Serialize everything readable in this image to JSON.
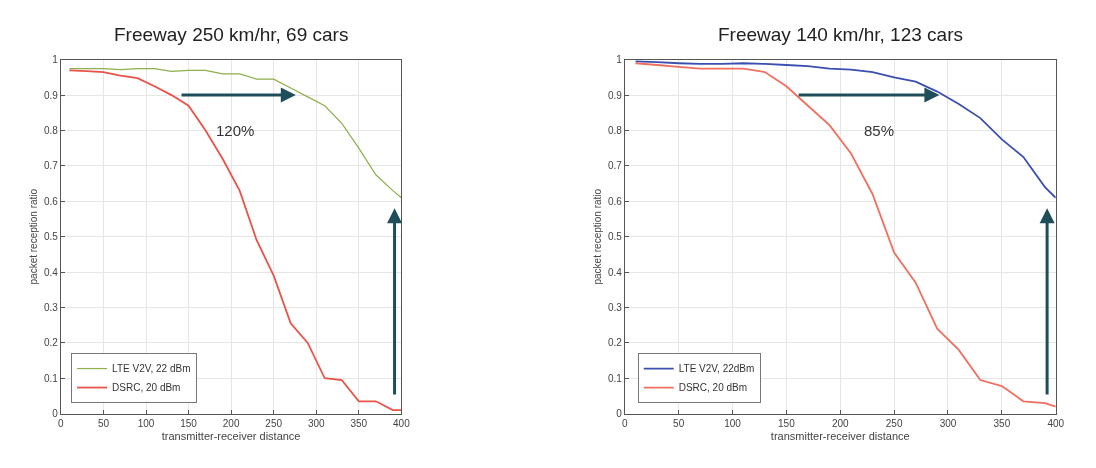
{
  "chart_data": [
    {
      "type": "line",
      "title": "Freeway 250 km/hr, 69 cars",
      "xlabel": "transmitter-receiver distance",
      "ylabel": "packet reception ratio",
      "x": [
        10,
        30,
        50,
        70,
        90,
        110,
        130,
        150,
        170,
        190,
        210,
        230,
        250,
        270,
        290,
        310,
        330,
        350,
        370,
        390,
        400
      ],
      "series": [
        {
          "name": "LTE V2V, 22 dBm",
          "color": "#8db04a",
          "values": [
            0.975,
            0.975,
            0.975,
            0.972,
            0.975,
            0.975,
            0.967,
            0.97,
            0.97,
            0.96,
            0.96,
            0.945,
            0.945,
            0.92,
            0.895,
            0.87,
            0.82,
            0.75,
            0.675,
            0.63,
            0.61
          ]
        },
        {
          "name": "DSRC, 20 dBm",
          "color": "#e8534a",
          "values": [
            0.97,
            0.968,
            0.965,
            0.955,
            0.948,
            0.925,
            0.9,
            0.87,
            0.8,
            0.72,
            0.63,
            0.49,
            0.39,
            0.255,
            0.2,
            0.1,
            0.095,
            0.035,
            0.035,
            0.01,
            0.01
          ]
        }
      ],
      "annotations": [
        "120%"
      ],
      "xlim": [
        0,
        400
      ],
      "xticks": [
        0,
        50,
        100,
        150,
        200,
        250,
        300,
        350,
        400
      ],
      "ylim": [
        0,
        1
      ],
      "yticks": [
        0,
        0.1,
        0.2,
        0.3,
        0.4,
        0.5,
        0.6,
        0.7,
        0.8,
        0.9,
        1
      ],
      "grid": true,
      "legend": "bottom left",
      "marker": "none",
      "line_style": "solid"
    },
    {
      "type": "line",
      "title": "Freeway 140 km/hr, 123 cars",
      "xlabel": "transmitter-receiver distance",
      "ylabel": "packet reception ratio",
      "x": [
        10,
        30,
        50,
        70,
        90,
        110,
        130,
        150,
        170,
        190,
        210,
        230,
        250,
        270,
        290,
        310,
        330,
        350,
        370,
        390,
        400
      ],
      "series": [
        {
          "name": "LTE V2V, 22dBm",
          "color": "#3a4fb0",
          "values": [
            0.995,
            0.993,
            0.99,
            0.988,
            0.988,
            0.99,
            0.988,
            0.985,
            0.982,
            0.975,
            0.972,
            0.965,
            0.95,
            0.938,
            0.91,
            0.875,
            0.835,
            0.775,
            0.725,
            0.64,
            0.61
          ]
        },
        {
          "name": "DSRC, 20 dBm",
          "color": "#f07060",
          "values": [
            0.99,
            0.985,
            0.98,
            0.975,
            0.975,
            0.975,
            0.965,
            0.925,
            0.87,
            0.815,
            0.735,
            0.62,
            0.455,
            0.37,
            0.24,
            0.18,
            0.095,
            0.078,
            0.035,
            0.03,
            0.02
          ]
        }
      ],
      "annotations": [
        "85%"
      ],
      "xlim": [
        0,
        400
      ],
      "xticks": [
        0,
        50,
        100,
        150,
        200,
        250,
        300,
        350,
        400
      ],
      "ylim": [
        0,
        1
      ],
      "yticks": [
        0,
        0.1,
        0.2,
        0.3,
        0.4,
        0.5,
        0.6,
        0.7,
        0.8,
        0.9,
        1
      ],
      "grid": true,
      "legend": "bottom left",
      "marker": "none",
      "line_style": "solid"
    }
  ]
}
